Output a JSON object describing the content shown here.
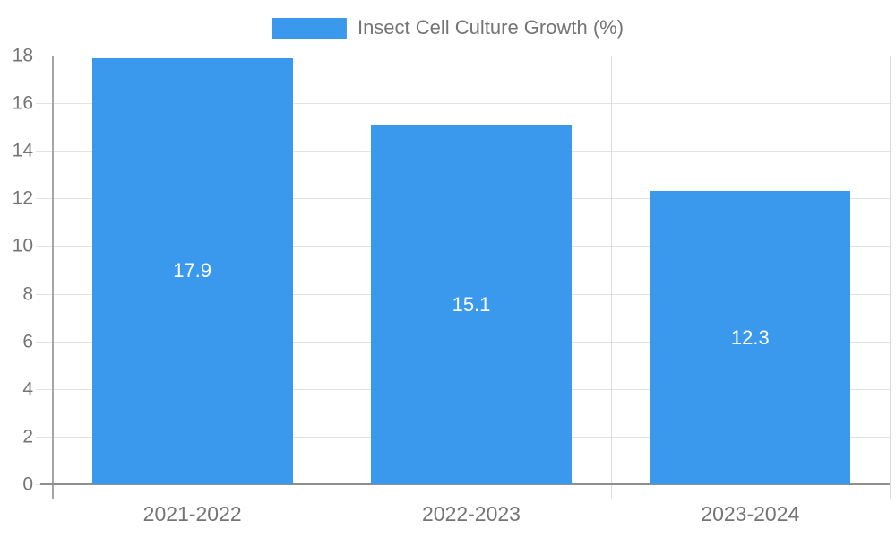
{
  "page": {
    "background": "#ffffff"
  },
  "colors": {
    "bar": "#3b99ed",
    "grid": "#e2e2e2",
    "boundary": "#dcdcdc",
    "axis_x": "#8f8f8f",
    "axis_y": "#a6a6a6",
    "text": "#757575",
    "value_label": "#ffffff",
    "background": "#ffffff"
  },
  "legend": {
    "swatch_color": "#3b99ed",
    "label": "Insect Cell Culture Growth (%)"
  },
  "chart_data": {
    "type": "bar",
    "title": "Insect Cell Culture Growth (%)",
    "categories": [
      "2021-2022",
      "2022-2023",
      "2023-2024"
    ],
    "values": [
      17.9,
      15.1,
      12.3
    ],
    "bar_labels": [
      "17.9",
      "15.1",
      "12.3"
    ],
    "xlabel": "",
    "ylabel": "",
    "ylim": [
      0,
      18
    ],
    "ytick_step": 2,
    "yticks": [
      0,
      2,
      4,
      6,
      8,
      10,
      12,
      14,
      16,
      18
    ],
    "grid": true,
    "legend_position": "top-center",
    "bar_color": "#3b99ed"
  }
}
